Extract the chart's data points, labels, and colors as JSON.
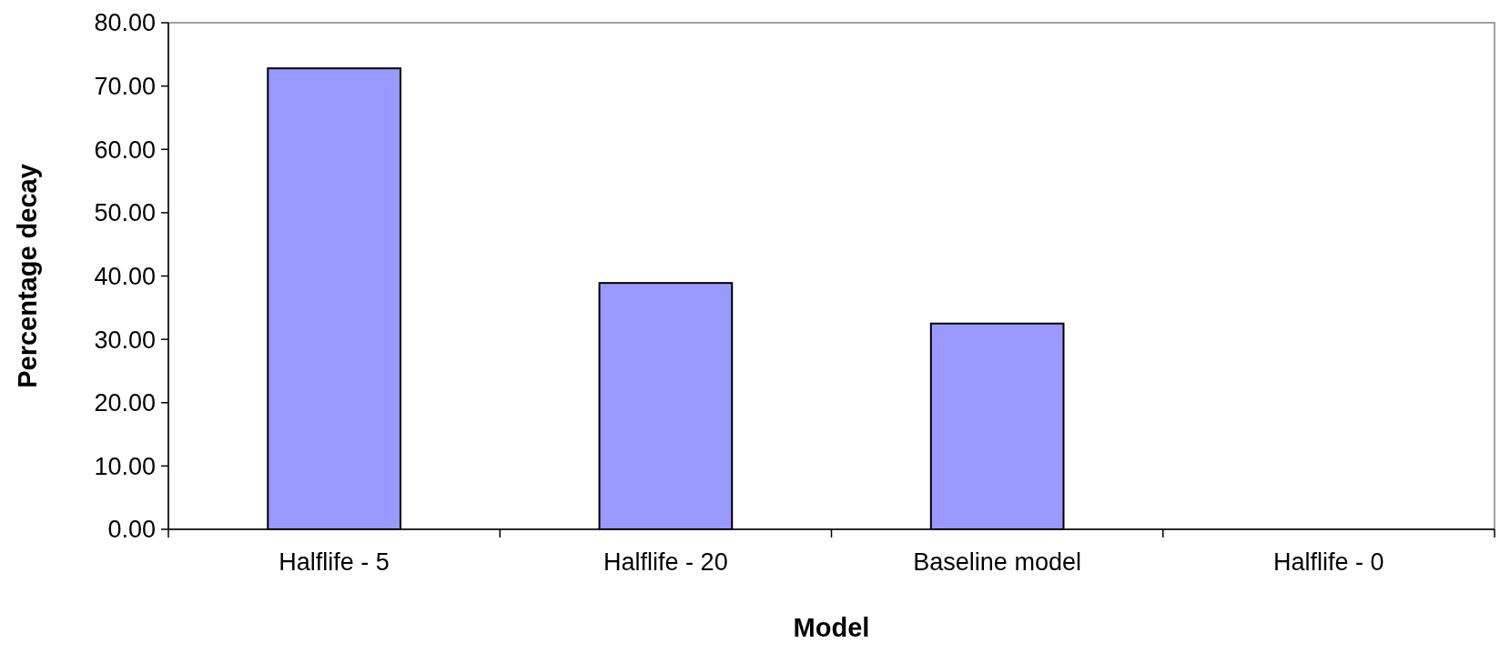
{
  "chart_data": {
    "type": "bar",
    "xlabel": "Model",
    "ylabel": "Percentage decay",
    "categories": [
      "Halflife - 5",
      "Halflife - 20",
      "Baseline model",
      "Halflife - 0"
    ],
    "values": [
      72.8,
      38.9,
      32.5,
      0
    ],
    "color": "#9999ff",
    "ylim": [
      0,
      80
    ],
    "yticks": [
      {
        "value": 0,
        "label": "0.00"
      },
      {
        "value": 10,
        "label": "10.00"
      },
      {
        "value": 20,
        "label": "20.00"
      },
      {
        "value": 30,
        "label": "30.00"
      },
      {
        "value": 40,
        "label": "40.00"
      },
      {
        "value": 50,
        "label": "50.00"
      },
      {
        "value": 60,
        "label": "60.00"
      },
      {
        "value": 70,
        "label": "70.00"
      },
      {
        "value": 80,
        "label": "80.00"
      }
    ],
    "grid": false
  }
}
